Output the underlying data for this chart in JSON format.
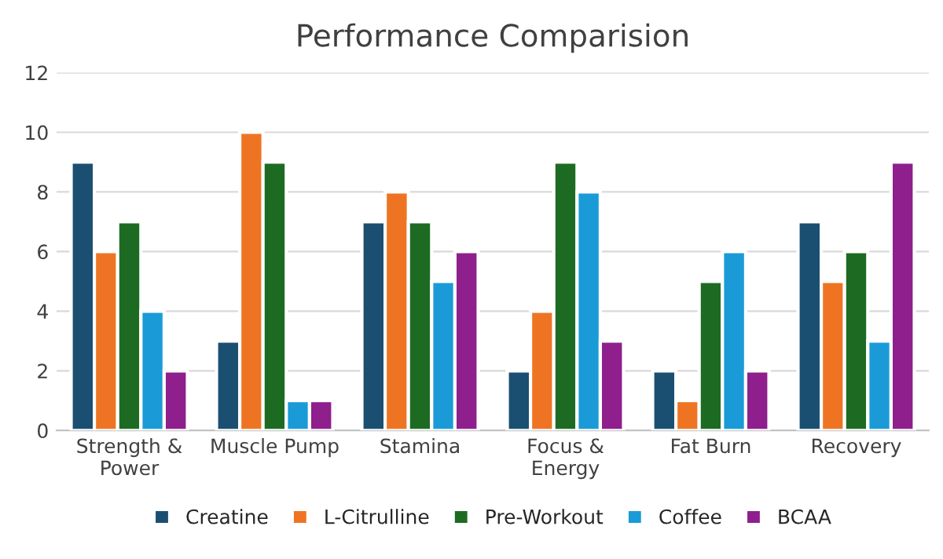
{
  "chart_data": {
    "type": "bar",
    "title": "Performance Comparision",
    "categories": [
      "Strength &\nPower",
      "Muscle Pump",
      "Stamina",
      "Focus &\nEnergy",
      "Fat Burn",
      "Recovery"
    ],
    "series": [
      {
        "name": "Creatine",
        "color": "#1b4f72",
        "values": [
          9,
          3,
          7,
          2,
          2,
          7
        ]
      },
      {
        "name": "L-Citrulline",
        "color": "#ee7423",
        "values": [
          6,
          10,
          8,
          4,
          1,
          5
        ]
      },
      {
        "name": "Pre-Workout",
        "color": "#1d6b22",
        "values": [
          7,
          9,
          7,
          9,
          5,
          6
        ]
      },
      {
        "name": "Coffee",
        "color": "#1a9bd7",
        "values": [
          4,
          1,
          5,
          8,
          6,
          3
        ]
      },
      {
        "name": "BCAA",
        "color": "#8e1f8c",
        "values": [
          2,
          1,
          6,
          3,
          2,
          9
        ]
      }
    ],
    "ylim": [
      0,
      12
    ],
    "yticks": [
      0,
      2,
      4,
      6,
      8,
      10,
      12
    ],
    "grid": "y",
    "legend": "bottom"
  }
}
